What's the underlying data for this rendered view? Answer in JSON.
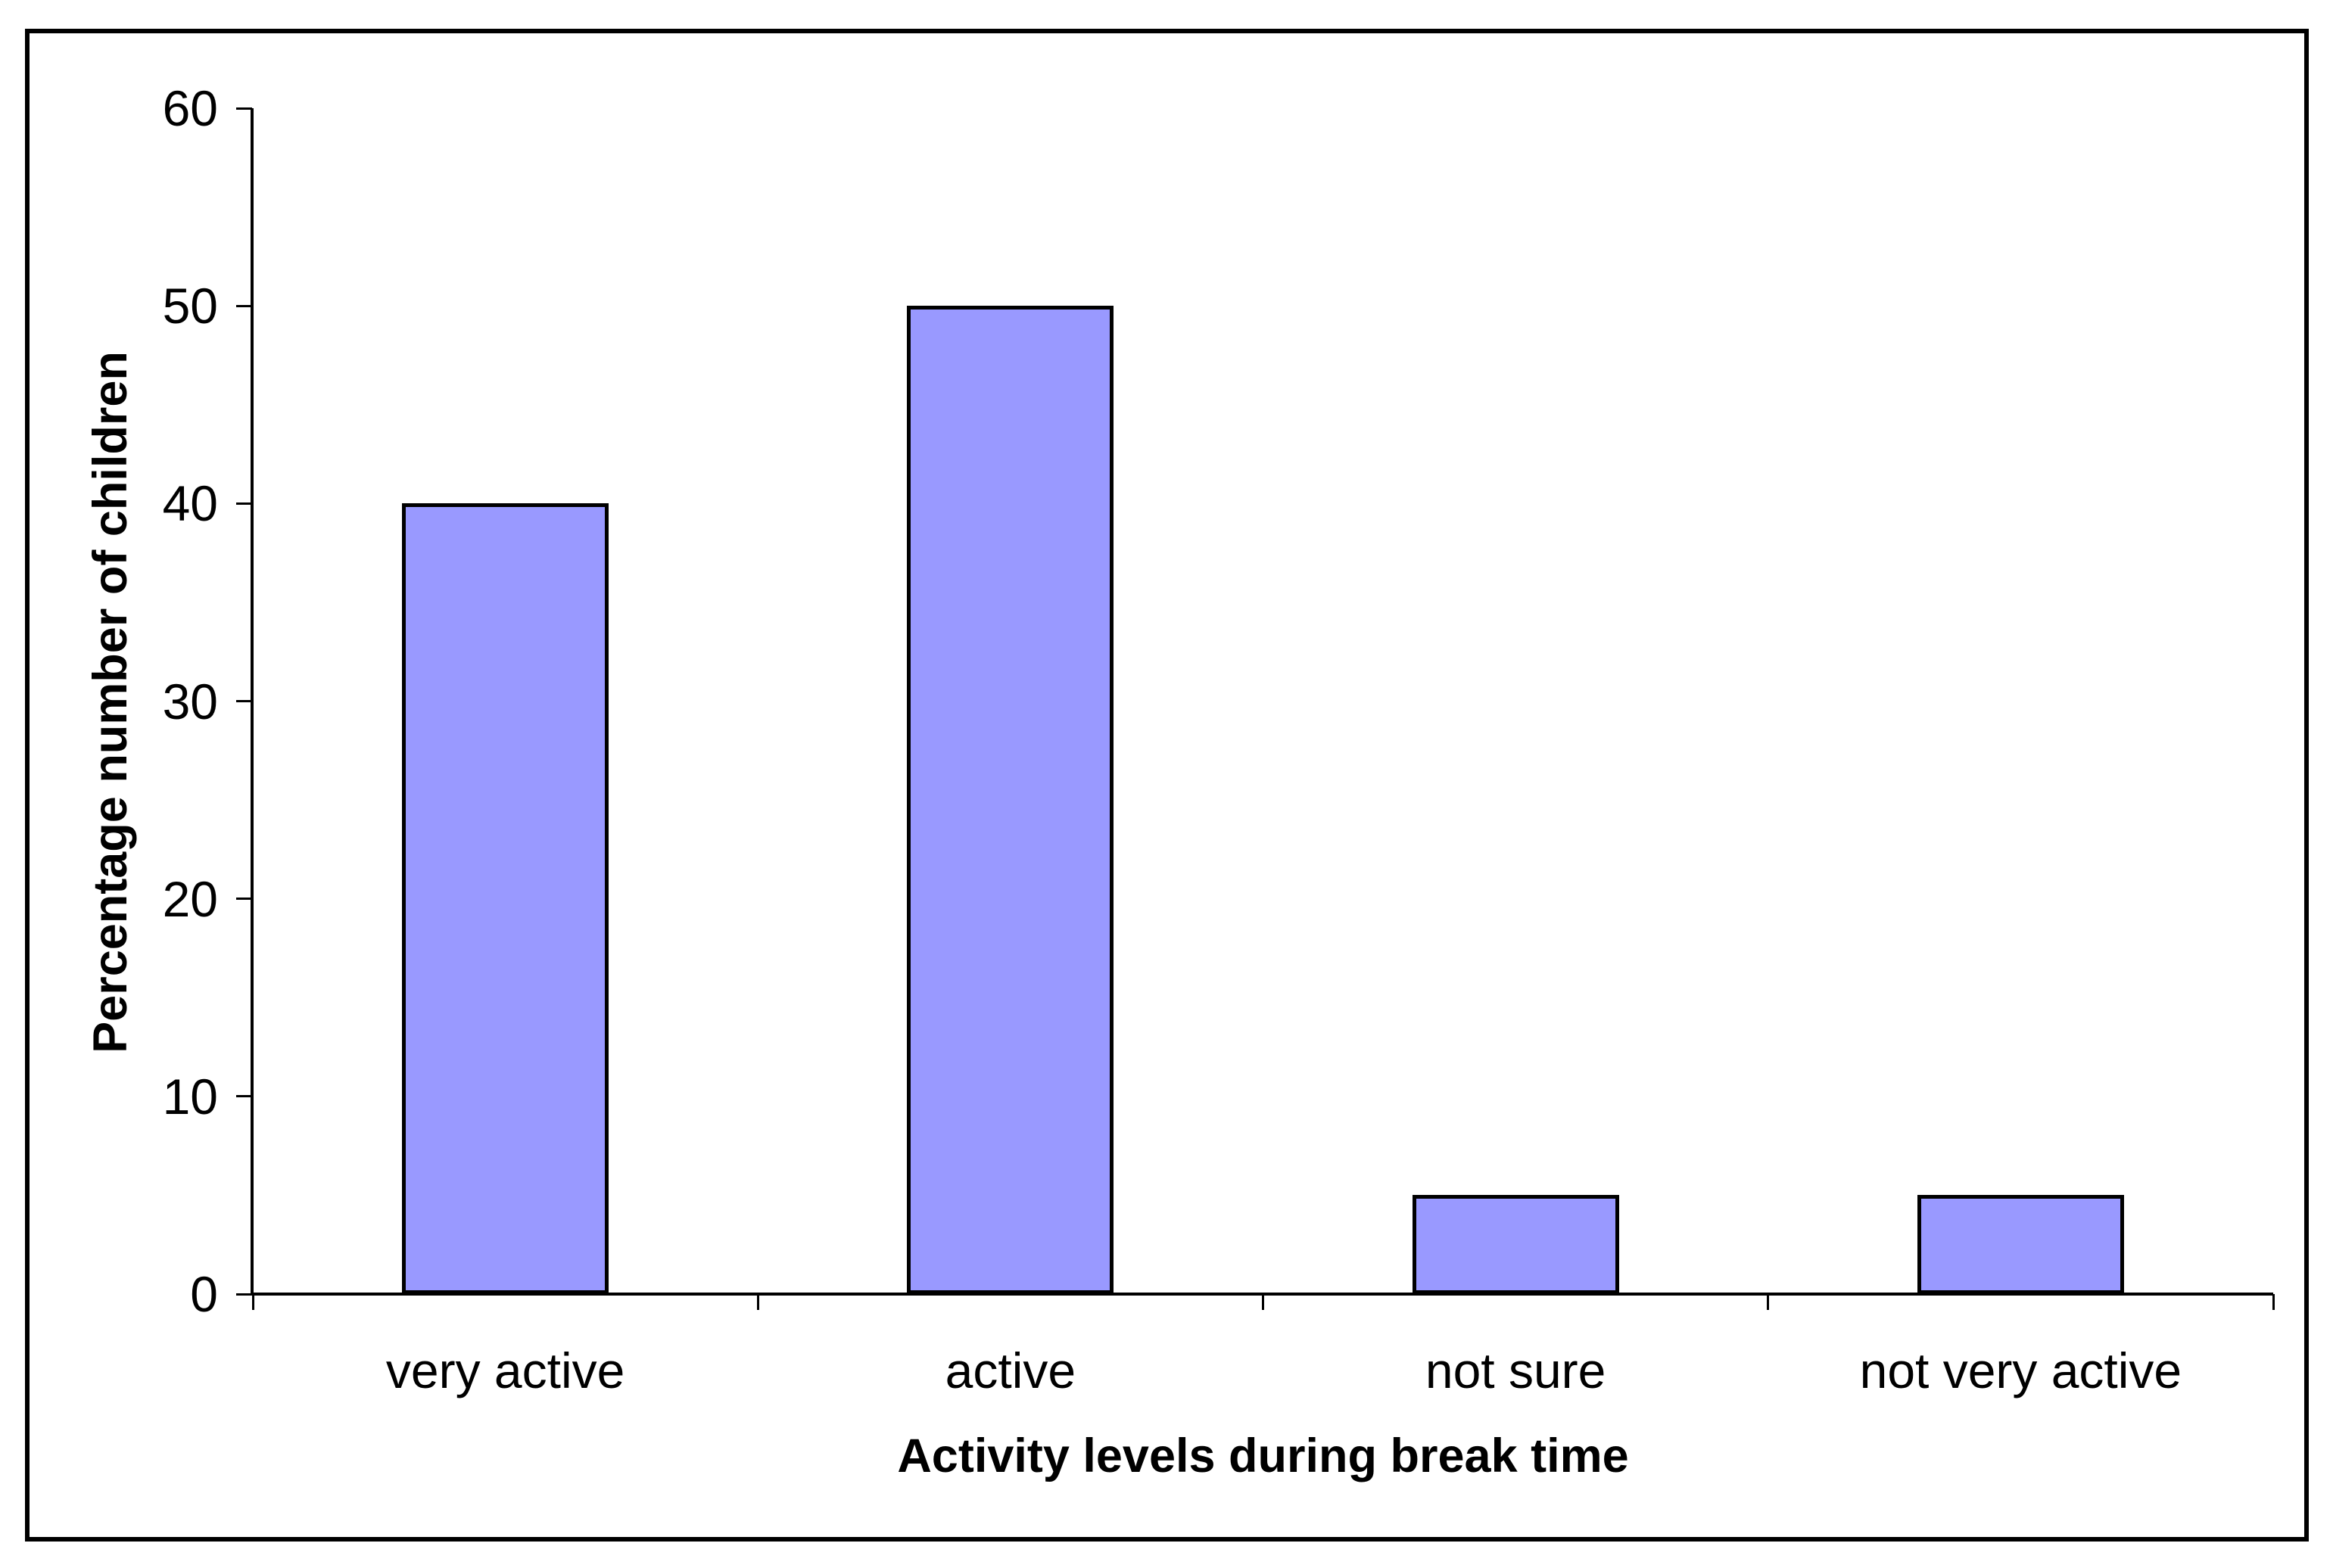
{
  "chart_data": {
    "type": "bar",
    "categories": [
      "very active",
      "active",
      "not sure",
      "not very active"
    ],
    "values": [
      40,
      50,
      5,
      5
    ],
    "title": "",
    "xlabel": "Activity levels during break time",
    "ylabel": "Percentage number of children",
    "ylim": [
      0,
      60
    ],
    "yticks": [
      0,
      10,
      20,
      30,
      40,
      50,
      60
    ],
    "grid": false,
    "legend": false,
    "bar_color": "#9999FF",
    "bar_border_color": "#000000",
    "axis_color": "#000000",
    "background_color": "#FFFFFF"
  }
}
